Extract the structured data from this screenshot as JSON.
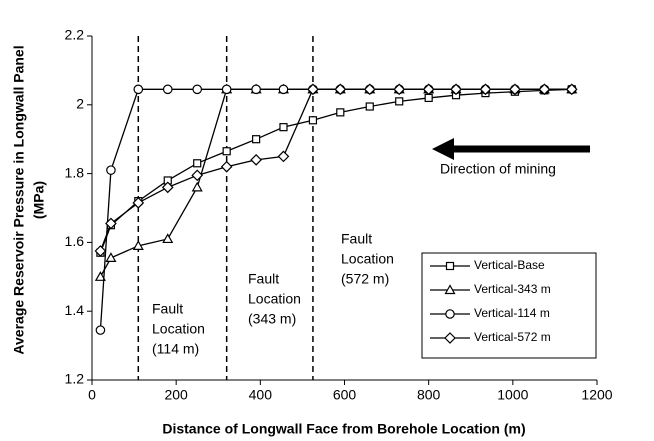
{
  "chart_data": {
    "type": "line",
    "x_label": "Distance of Longwall Face from Borehole Location  (m)",
    "y_label": [
      "Average Reservoir Pressure in Longwall Panel",
      "(MPa)"
    ],
    "x": [
      20,
      45,
      110,
      180,
      250,
      320,
      390,
      455,
      525,
      590,
      660,
      730,
      800,
      865,
      935,
      1005,
      1075,
      1140
    ],
    "series": [
      {
        "name": "Vertical-Base",
        "color": "#000000",
        "marker": "square",
        "values": [
          1.57,
          1.65,
          1.72,
          1.78,
          1.83,
          1.865,
          1.9,
          1.935,
          1.955,
          1.978,
          1.995,
          2.01,
          2.02,
          2.028,
          2.034,
          2.038,
          2.042,
          2.045
        ]
      },
      {
        "name": "Vertical-343 m",
        "color": "#000000",
        "marker": "triangle",
        "values": [
          1.5,
          1.555,
          1.59,
          1.61,
          1.76,
          2.045,
          2.045,
          2.045,
          2.045,
          2.045,
          2.045,
          2.045,
          2.045,
          2.045,
          2.045,
          2.045,
          2.045,
          2.045
        ]
      },
      {
        "name": "Vertical-114 m",
        "color": "#000000",
        "marker": "circle",
        "values": [
          1.345,
          1.81,
          2.045,
          2.045,
          2.045,
          2.045,
          2.045,
          2.045,
          2.045,
          2.045,
          2.045,
          2.045,
          2.045,
          2.045,
          2.045,
          2.045,
          2.045,
          2.045
        ]
      },
      {
        "name": "Vertical-572 m",
        "color": "#000000",
        "marker": "diamond",
        "values": [
          1.575,
          1.655,
          1.715,
          1.76,
          1.795,
          1.82,
          1.84,
          1.85,
          2.045,
          2.045,
          2.045,
          2.045,
          2.045,
          2.045,
          2.045,
          2.045,
          2.045,
          2.045
        ]
      }
    ],
    "xlim": [
      0,
      1200
    ],
    "xticks": [
      0,
      200,
      400,
      600,
      800,
      1000,
      1200
    ],
    "ylim": [
      1.2,
      2.2
    ],
    "yticks": [
      1.2,
      1.4,
      1.6,
      1.8,
      2,
      2.2
    ],
    "fault_lines": [
      110,
      320,
      525
    ],
    "annotations": [
      [
        "Fault",
        "Location",
        "(114 m)"
      ],
      [
        "Fault",
        "Location",
        "(343 m)"
      ],
      [
        "Fault",
        "Location",
        "(572 m)"
      ]
    ],
    "arrow_label": "Direction of mining"
  }
}
